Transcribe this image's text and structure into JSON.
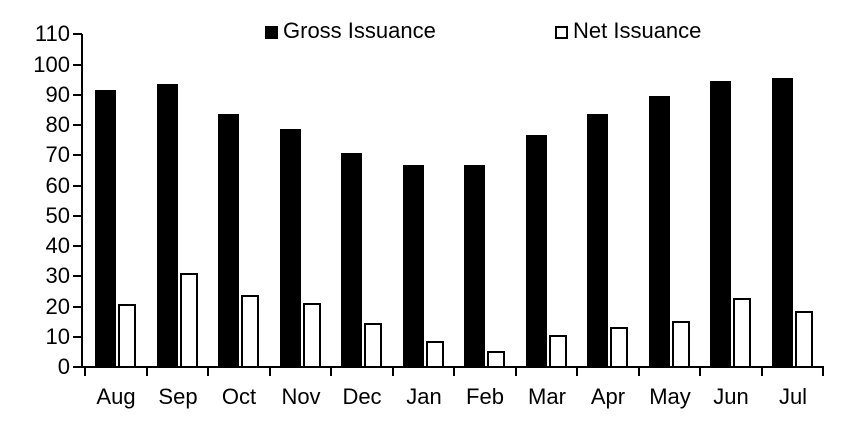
{
  "chart_data": {
    "type": "bar",
    "title": "",
    "xlabel": "",
    "ylabel": "",
    "categories": [
      "Aug",
      "Sep",
      "Oct",
      "Nov",
      "Dec",
      "Jan",
      "Feb",
      "Mar",
      "Apr",
      "May",
      "Jun",
      "Jul"
    ],
    "series": [
      {
        "name": "Gross Issuance",
        "values": [
          92,
          94,
          84,
          79,
          71,
          67,
          67,
          77,
          84,
          90,
          95,
          96
        ]
      },
      {
        "name": "Net Issuance",
        "values": [
          21,
          31.5,
          24,
          21.5,
          15,
          9,
          5.5,
          11,
          13.5,
          15.5,
          23,
          19
        ]
      }
    ],
    "ylim": [
      0,
      110
    ],
    "yticks": [
      0,
      10,
      20,
      30,
      40,
      50,
      60,
      70,
      80,
      90,
      100,
      110
    ],
    "grid": false,
    "legend_position": "top"
  },
  "legend": {
    "gross_label": "Gross Issuance",
    "net_label": "Net Issuance"
  },
  "colors": {
    "gross_fill": "#000000",
    "net_fill": "#ffffff",
    "net_stroke": "#000000",
    "axis": "#000000",
    "background": "#ffffff",
    "text": "#000000"
  }
}
